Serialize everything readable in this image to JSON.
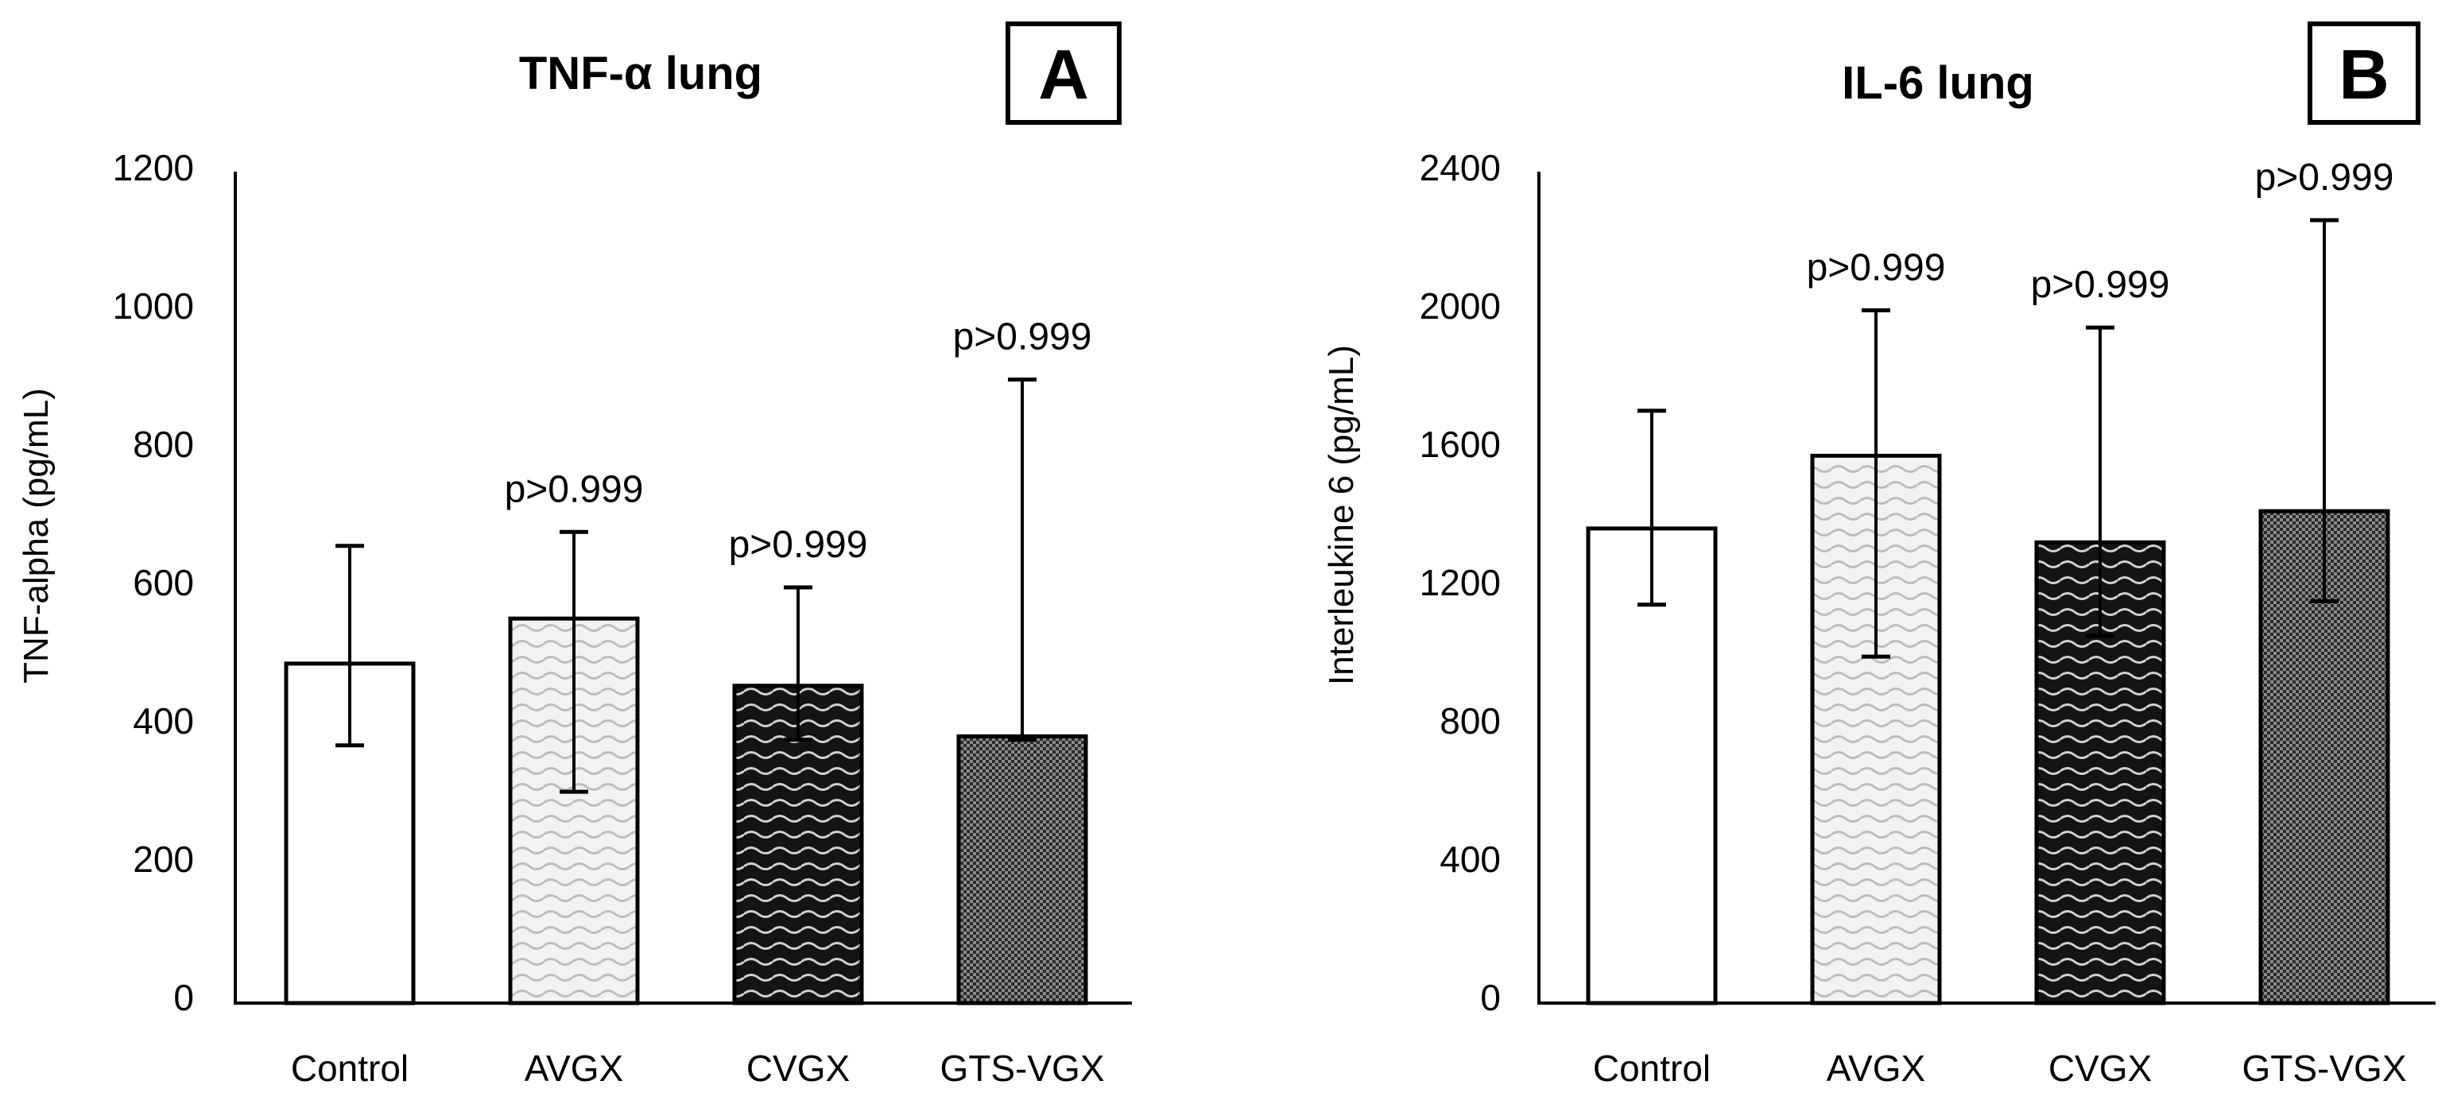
{
  "chart_data": [
    {
      "type": "bar",
      "panel": "A",
      "title": "TNF-α lung",
      "xlabel": "",
      "ylabel": "TNF-alpha (pg/mL)",
      "ylim": [
        0,
        1200
      ],
      "yticks": [
        "0",
        "200",
        "400",
        "600",
        "800",
        "1000",
        "1200"
      ],
      "grid": false,
      "categories": [
        "Control",
        "AVGX",
        "CVGX",
        "GTS-VGX"
      ],
      "values": [
        490,
        555,
        458,
        385
      ],
      "error_low": [
        372,
        305,
        380,
        380
      ],
      "error_high": [
        660,
        680,
        600,
        900
      ],
      "annotations": [
        "",
        "p>0.999",
        "p>0.999",
        "p>0.999"
      ],
      "fills": [
        "plain",
        "light-wave",
        "dark-wave",
        "dark-dots"
      ]
    },
    {
      "type": "bar",
      "panel": "B",
      "title": "IL-6 lung",
      "xlabel": "",
      "ylabel": "Interleukine 6 (pg/mL)",
      "ylim": [
        0,
        2400
      ],
      "yticks": [
        "0",
        "400",
        "800",
        "1200",
        "1600",
        "2000",
        "2400"
      ],
      "grid": false,
      "categories": [
        "Control",
        "AVGX",
        "CVGX",
        "GTS-VGX"
      ],
      "values": [
        1370,
        1580,
        1330,
        1420
      ],
      "error_low": [
        1150,
        1000,
        1060,
        1160
      ],
      "error_high": [
        1710,
        2000,
        1950,
        2260
      ],
      "annotations": [
        "",
        "p>0.999",
        "p>0.999",
        "p>0.999"
      ],
      "fills": [
        "plain",
        "light-wave",
        "dark-wave",
        "dark-dots"
      ]
    }
  ],
  "colors": {
    "axis": "#000000",
    "bar_edge": "#000000",
    "plain_fill": "#ffffff",
    "light_wave_bg": "#f2f2f2",
    "light_wave_line": "#bdbdbd",
    "dark_wave_bg": "#141414",
    "dark_wave_line": "#d0d0d0",
    "dark_dots_bg": "#2b2b2b",
    "dark_dots_check": "#8a8a8a"
  }
}
